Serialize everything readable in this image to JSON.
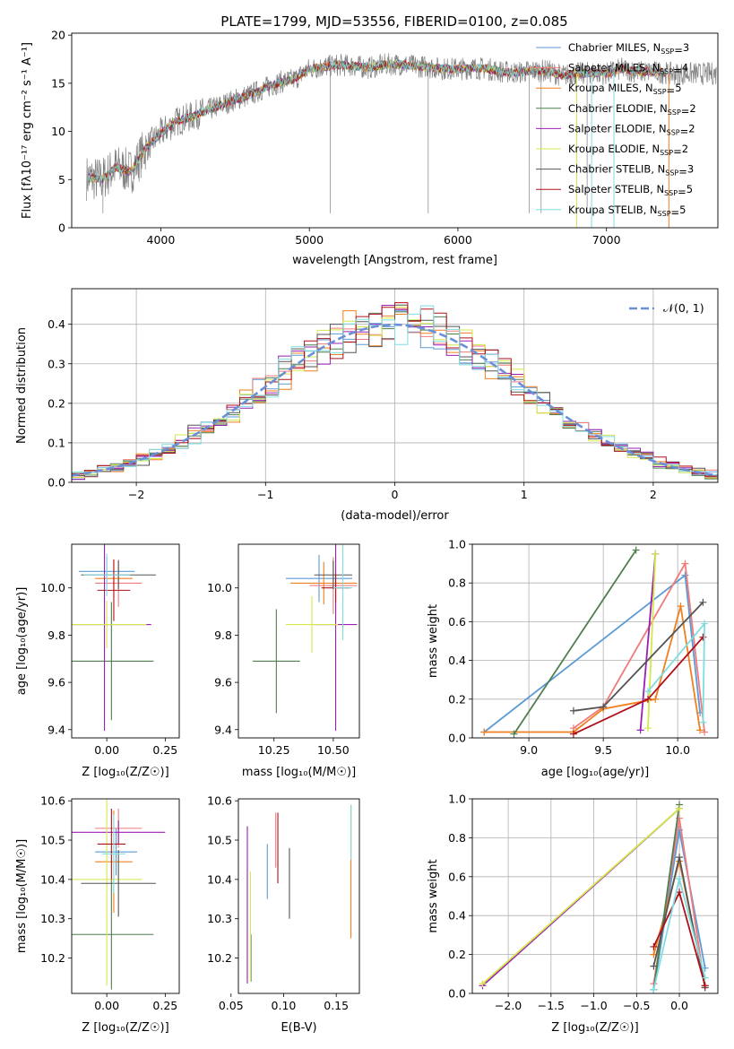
{
  "figure": {
    "title": "PLATE=1799, MJD=53556, FIBERID=0100, z=0.085"
  },
  "models": [
    {
      "name": "Chabrier MILES",
      "nssp": "3",
      "color": "#5b9bd5"
    },
    {
      "name": "Salpeter MILES",
      "nssp": "4",
      "color": "#f07b7b"
    },
    {
      "name": "Kroupa MILES",
      "nssp": "5",
      "color": "#f07f1e"
    },
    {
      "name": "Chabrier ELODIE",
      "nssp": "2",
      "color": "#4f7f4f"
    },
    {
      "name": "Salpeter ELODIE",
      "nssp": "2",
      "color": "#9b1fb4"
    },
    {
      "name": "Kroupa ELODIE",
      "nssp": "2",
      "color": "#d4e84a"
    },
    {
      "name": "Chabrier STELIB",
      "nssp": "3",
      "color": "#555555"
    },
    {
      "name": "Salpeter STELIB",
      "nssp": "5",
      "color": "#b0101a"
    },
    {
      "name": "Kroupa STELIB",
      "nssp": "5",
      "color": "#7fdde0"
    }
  ],
  "chart_data": [
    {
      "id": "spectrum",
      "type": "line",
      "xlabel": "wavelength [Angstrom, rest frame]",
      "ylabel": "Flux [fλ10⁻¹⁷ erg cm⁻² s⁻¹ A⁻¹]",
      "xlim": [
        3400,
        7750
      ],
      "ylim": [
        0,
        20.2
      ],
      "xticks": [
        4000,
        5000,
        6000,
        7000
      ],
      "yticks": [
        0,
        5,
        10,
        15,
        20
      ],
      "data_color": "#808080",
      "continuum": [
        [
          3500,
          5.2
        ],
        [
          3600,
          5.0
        ],
        [
          3700,
          6.3
        ],
        [
          3800,
          5.8
        ],
        [
          3900,
          8.3
        ],
        [
          4000,
          9.8
        ],
        [
          4100,
          11.0
        ],
        [
          4200,
          11.5
        ],
        [
          4300,
          12.1
        ],
        [
          4400,
          12.7
        ],
        [
          4500,
          13.3
        ],
        [
          4600,
          13.8
        ],
        [
          4700,
          14.5
        ],
        [
          4800,
          15.1
        ],
        [
          4900,
          15.4
        ],
        [
          5000,
          16.5
        ],
        [
          5100,
          16.7
        ],
        [
          5200,
          16.9
        ],
        [
          5300,
          16.8
        ],
        [
          5400,
          16.6
        ],
        [
          5500,
          16.9
        ],
        [
          5600,
          17.0
        ],
        [
          5700,
          16.8
        ],
        [
          5800,
          16.7
        ],
        [
          5900,
          16.5
        ],
        [
          6000,
          16.5
        ],
        [
          6100,
          16.6
        ],
        [
          6200,
          16.5
        ],
        [
          6300,
          16.2
        ],
        [
          6400,
          16.1
        ],
        [
          6500,
          16.3
        ],
        [
          6600,
          16.3
        ],
        [
          6700,
          15.8
        ],
        [
          6800,
          16.0
        ],
        [
          6900,
          16.1
        ],
        [
          7000,
          16.0
        ],
        [
          7100,
          16.5
        ],
        [
          7200,
          16.2
        ],
        [
          7300,
          16.2
        ],
        [
          7400,
          16.1
        ],
        [
          7410,
          16.0
        ]
      ],
      "absorption_lines": [
        3610,
        5140,
        5800,
        6480,
        6560,
        6870,
        7050
      ]
    },
    {
      "id": "residuals",
      "type": "area",
      "xlabel": "(data-model)/error",
      "ylabel": "Normed distribution",
      "xlim": [
        -2.5,
        2.5
      ],
      "ylim": [
        0,
        0.49
      ],
      "xticks": [
        -2,
        -1,
        0,
        1,
        2
      ],
      "yticks": [
        0.0,
        0.1,
        0.2,
        0.3,
        0.4
      ],
      "grid": true,
      "legend": "𝒩(0, 1)",
      "legend_position": "top-right",
      "gaussian_color": "#6a8fd8",
      "bin_width": 0.1
    },
    {
      "id": "age_vs_Z",
      "type": "scatter",
      "xlabel": "Z [log₁₀(Z/Z☉)]",
      "ylabel": "age  [log₁₀(age/yr)]",
      "xlim": [
        -0.15,
        0.31
      ],
      "ylim": [
        9.365,
        10.185
      ],
      "xticks": [
        0.0,
        0.25
      ],
      "yticks": [
        9.4,
        9.6,
        9.8,
        10.0
      ],
      "points": [
        {
          "x": 0.0,
          "y": 10.07,
          "xerr": 0.12,
          "yerr": 0.06
        },
        {
          "x": 0.05,
          "y": 10.02,
          "xerr": 0.1,
          "yerr": 0.1
        },
        {
          "x": 0.03,
          "y": 10.04,
          "xerr": 0.08,
          "yerr": 0.08
        },
        {
          "x": 0.02,
          "y": 9.69,
          "xerr": 0.18,
          "yerr": 0.25
        },
        {
          "x": -0.01,
          "y": 9.845,
          "xerr": 0.2,
          "yerr": 0.45
        },
        {
          "x": 0.0,
          "y": 9.845,
          "xerr": 0.17,
          "yerr": 0.1
        },
        {
          "x": 0.05,
          "y": 10.055,
          "xerr": 0.16,
          "yerr": 0.06
        },
        {
          "x": 0.03,
          "y": 9.99,
          "xerr": 0.07,
          "yerr": 0.13
        },
        {
          "x": 0.0,
          "y": 10.055,
          "xerr": 0.1,
          "yerr": 0.09
        }
      ]
    },
    {
      "id": "age_vs_mass",
      "type": "scatter",
      "xlabel": "mass [log₁₀(M/M☉)]",
      "ylabel": "",
      "xlim": [
        10.1,
        10.61
      ],
      "ylim": [
        9.365,
        10.185
      ],
      "xticks": [
        10.25,
        10.5
      ],
      "yticks": [
        9.4,
        9.6,
        9.8,
        10.0
      ],
      "points": [
        {
          "x": 10.44,
          "y": 10.04,
          "xerr": 0.14,
          "yerr": 0.1
        },
        {
          "x": 10.5,
          "y": 10.01,
          "xerr": 0.1,
          "yerr": 0.12
        },
        {
          "x": 10.46,
          "y": 10.02,
          "xerr": 0.14,
          "yerr": 0.09
        },
        {
          "x": 10.26,
          "y": 9.69,
          "xerr": 0.1,
          "yerr": 0.22
        },
        {
          "x": 10.51,
          "y": 9.845,
          "xerr": 0.09,
          "yerr": 0.45
        },
        {
          "x": 10.41,
          "y": 9.845,
          "xerr": 0.11,
          "yerr": 0.12
        },
        {
          "x": 10.5,
          "y": 10.055,
          "xerr": 0.08,
          "yerr": 0.06
        },
        {
          "x": 10.51,
          "y": 10.0,
          "xerr": 0.06,
          "yerr": 0.06
        },
        {
          "x": 10.54,
          "y": 10.0,
          "xerr": 0.04,
          "yerr": 0.22
        }
      ]
    },
    {
      "id": "weight_vs_age",
      "type": "line",
      "xlabel": "age  [log₁₀(age/yr)]",
      "ylabel": "mass weight",
      "xlim": [
        8.62,
        10.27
      ],
      "ylim": [
        0,
        1.0
      ],
      "xticks": [
        9.0,
        9.5,
        10.0
      ],
      "yticks": [
        0.0,
        0.2,
        0.4,
        0.6,
        0.8,
        1.0
      ],
      "grid": true,
      "series": [
        {
          "x": [
            8.7,
            10.05,
            10.15
          ],
          "y": [
            0.03,
            0.84,
            0.13
          ]
        },
        {
          "x": [
            9.3,
            9.5,
            10.05,
            10.18
          ],
          "y": [
            0.05,
            0.16,
            0.9,
            0.03
          ]
        },
        {
          "x": [
            8.7,
            9.3,
            9.5,
            9.85,
            10.02,
            10.15
          ],
          "y": [
            0.03,
            0.03,
            0.15,
            0.2,
            0.68,
            0.04
          ]
        },
        {
          "x": [
            8.9,
            9.72
          ],
          "y": [
            0.02,
            0.97
          ]
        },
        {
          "x": [
            9.75,
            9.85
          ],
          "y": [
            0.04,
            0.95
          ]
        },
        {
          "x": [
            9.8,
            9.85
          ],
          "y": [
            0.05,
            0.95
          ]
        },
        {
          "x": [
            9.3,
            9.5,
            10.17
          ],
          "y": [
            0.14,
            0.16,
            0.7
          ]
        },
        {
          "x": [
            9.3,
            9.8,
            10.17
          ],
          "y": [
            0.02,
            0.2,
            0.52
          ]
        },
        {
          "x": [
            9.8,
            10.18,
            10.17
          ],
          "y": [
            0.24,
            0.59,
            0.08
          ]
        }
      ]
    },
    {
      "id": "mass_vs_Z",
      "type": "scatter",
      "xlabel": "Z [log₁₀(Z/Z☉)]",
      "ylabel": "mass [log₁₀(M/M☉)]",
      "xlim": [
        -0.15,
        0.31
      ],
      "ylim": [
        10.11,
        10.605
      ],
      "xticks": [
        0.0,
        0.25
      ],
      "yticks": [
        10.2,
        10.3,
        10.4,
        10.5,
        10.6
      ],
      "points": [
        {
          "x": 0.04,
          "y": 10.47,
          "xerr": 0.09,
          "yerr": 0.06
        },
        {
          "x": 0.05,
          "y": 10.53,
          "xerr": 0.1,
          "yerr": 0.05
        },
        {
          "x": 0.03,
          "y": 10.445,
          "xerr": 0.08,
          "yerr": 0.13
        },
        {
          "x": 0.02,
          "y": 10.26,
          "xerr": 0.18,
          "yerr": 0.14
        },
        {
          "x": 0.05,
          "y": 10.52,
          "xerr": 0.2,
          "yerr": 0.03
        },
        {
          "x": 0.0,
          "y": 10.4,
          "xerr": 0.15,
          "yerr": 0.27
        },
        {
          "x": 0.05,
          "y": 10.39,
          "xerr": 0.16,
          "yerr": 0.085
        },
        {
          "x": 0.02,
          "y": 10.49,
          "xerr": 0.06,
          "yerr": 0.09
        },
        {
          "x": 0.03,
          "y": 10.465,
          "xerr": 0.05,
          "yerr": 0.1
        }
      ]
    },
    {
      "id": "mass_vs_ebv",
      "type": "scatter",
      "xlabel": "E(B-V)",
      "ylabel": "",
      "xlim": [
        0.057,
        0.172
      ],
      "ylim": [
        10.11,
        10.605
      ],
      "xticks": [
        0.05,
        0.1,
        0.15
      ],
      "yticks": [
        10.2,
        10.3,
        10.4,
        10.5,
        10.6
      ],
      "points": [
        {
          "x": 0.0845,
          "y": 10.42,
          "yerr": 0.07
        },
        {
          "x": 0.0925,
          "y": 10.5,
          "yerr": 0.07
        },
        {
          "x": 0.164,
          "y": 10.42,
          "yerr": 0.17
        },
        {
          "x": 0.069,
          "y": 10.2,
          "yerr": 0.06
        },
        {
          "x": 0.0655,
          "y": 10.335,
          "yerr": 0.2
        },
        {
          "x": 0.0685,
          "y": 10.28,
          "yerr": 0.14
        },
        {
          "x": 0.1055,
          "y": 10.39,
          "yerr": 0.09
        },
        {
          "x": 0.0945,
          "y": 10.48,
          "yerr": 0.09
        },
        {
          "x": 0.164,
          "y": 10.52,
          "yerr": 0.07
        }
      ]
    },
    {
      "id": "weight_vs_Z",
      "type": "line",
      "xlabel": "Z [log₁₀(Z/Z☉)]",
      "ylabel": "mass weight",
      "xlim": [
        -2.42,
        0.45
      ],
      "ylim": [
        0,
        1.0
      ],
      "xticks": [
        -2.0,
        -1.5,
        -1.0,
        -0.5,
        0.0
      ],
      "yticks": [
        0.0,
        0.2,
        0.4,
        0.6,
        0.8,
        1.0
      ],
      "grid": true,
      "series": [
        {
          "x": [
            -0.3,
            0.0,
            0.3
          ],
          "y": [
            0.02,
            0.84,
            0.13
          ]
        },
        {
          "x": [
            -0.3,
            0.0,
            0.3
          ],
          "y": [
            0.05,
            0.9,
            0.03
          ]
        },
        {
          "x": [
            -0.3,
            0.0,
            0.3
          ],
          "y": [
            0.2,
            0.68,
            0.04
          ]
        },
        {
          "x": [
            -0.3,
            0.0
          ],
          "y": [
            0.02,
            0.97
          ]
        },
        {
          "x": [
            -2.3,
            0.0
          ],
          "y": [
            0.04,
            0.95
          ]
        },
        {
          "x": [
            -2.3,
            0.0
          ],
          "y": [
            0.05,
            0.95
          ]
        },
        {
          "x": [
            -0.3,
            0.0,
            0.3
          ],
          "y": [
            0.14,
            0.7,
            0.03
          ]
        },
        {
          "x": [
            -0.3,
            0.0,
            0.3
          ],
          "y": [
            0.24,
            0.52,
            0.04
          ]
        },
        {
          "x": [
            -0.3,
            0.0,
            0.3
          ],
          "y": [
            0.02,
            0.59,
            0.08
          ]
        }
      ]
    }
  ]
}
